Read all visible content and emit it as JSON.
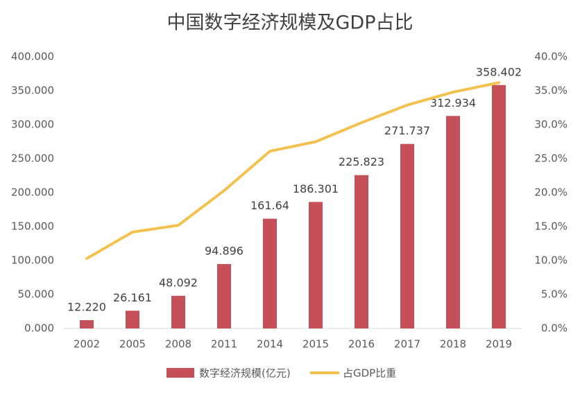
{
  "chart_data": {
    "type": "bar-line",
    "title": "中国数字经济规模及GDP占比",
    "categories": [
      "2002",
      "2005",
      "2008",
      "2011",
      "2014",
      "2015",
      "2016",
      "2017",
      "2018",
      "2019"
    ],
    "series": [
      {
        "name": "数字经济规模(亿元)",
        "type": "bar",
        "color": "#c5505a",
        "values": [
          12.22,
          26.161,
          48.092,
          94.896,
          161.64,
          186.301,
          225.823,
          271.737,
          312.934,
          358.402
        ],
        "value_labels": [
          "12.220",
          "26.161",
          "48.092",
          "94.896",
          "161.64",
          "186.301",
          "225.823",
          "271.737",
          "312.934",
          "358.402"
        ]
      },
      {
        "name": "占GDP比重",
        "type": "line",
        "axis": "y2",
        "color": "#f2c14e",
        "values": [
          10.3,
          14.2,
          15.2,
          20.3,
          26.1,
          27.5,
          30.3,
          32.9,
          34.8,
          36.2
        ]
      }
    ],
    "ylim": [
      0,
      400
    ],
    "yticks": [
      {
        "value": 0,
        "label": "0.000"
      },
      {
        "value": 50,
        "label": "50.000"
      },
      {
        "value": 100,
        "label": "100.000"
      },
      {
        "value": 150,
        "label": "150.000"
      },
      {
        "value": 200,
        "label": "200.000"
      },
      {
        "value": 250,
        "label": "250.000"
      },
      {
        "value": 300,
        "label": "300.000"
      },
      {
        "value": 350,
        "label": "350.000"
      },
      {
        "value": 400,
        "label": "400.000"
      }
    ],
    "y2lim": [
      0,
      40
    ],
    "y2ticks": [
      {
        "value": 0,
        "label": "0.0%"
      },
      {
        "value": 5,
        "label": "5.0%"
      },
      {
        "value": 10,
        "label": "10.0%"
      },
      {
        "value": 15,
        "label": "15.0%"
      },
      {
        "value": 20,
        "label": "20.0%"
      },
      {
        "value": 25,
        "label": "25.0%"
      },
      {
        "value": 30,
        "label": "30.0%"
      },
      {
        "value": 35,
        "label": "35.0%"
      },
      {
        "value": 40,
        "label": "40.0%"
      }
    ],
    "legend": "bottom"
  }
}
